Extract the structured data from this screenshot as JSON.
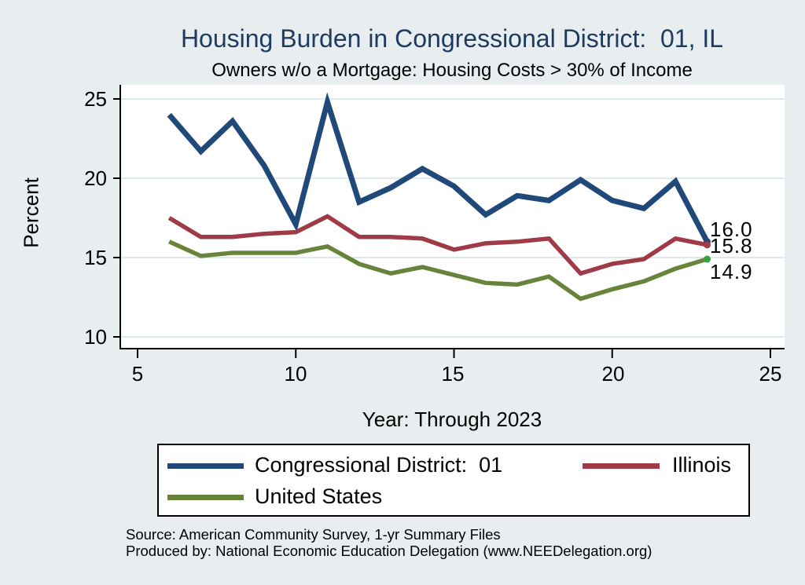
{
  "title": "Housing Burden in Congressional District:  01, IL",
  "subtitle": "Owners w/o a Mortgage: Housing Costs > 30% of Income",
  "y_axis": {
    "label": "Percent",
    "ticks": [
      "25",
      "20",
      "15",
      "10"
    ]
  },
  "x_axis": {
    "label": "Year: Through 2023",
    "ticks": [
      "5",
      "10",
      "15",
      "20",
      "25"
    ]
  },
  "end_labels": [
    "16.0",
    "15.8",
    "14.9"
  ],
  "source_line1": "Source: American Community Survey, 1-yr Summary Files",
  "source_line2": "Produced by: National Economic Education Delegation (www.NEEDelegation.org)",
  "colors": {
    "background": "#e8eef0",
    "plot_background": "#ffffff",
    "gridline": "#dfeaed",
    "axis": "#000000",
    "title": "#1e3a5f"
  },
  "chart_data": {
    "type": "line",
    "title": "Housing Burden in Congressional District:  01, IL",
    "subtitle": "Owners w/o a Mortgage: Housing Costs > 30% of Income",
    "xlabel": "Year: Through 2023",
    "ylabel": "Percent",
    "xlim": [
      5,
      25
    ],
    "ylim": [
      9.2,
      25.9
    ],
    "x_ticks": [
      5,
      10,
      15,
      20,
      25
    ],
    "y_ticks": [
      10,
      15,
      20,
      25
    ],
    "grid": true,
    "legend_position": "bottom",
    "x": [
      6,
      7,
      8,
      9,
      10,
      11,
      12,
      13,
      14,
      15,
      16,
      17,
      18,
      19,
      20,
      21,
      22,
      23
    ],
    "x_note": "x value = year - 2000, data through 2023",
    "series": [
      {
        "name": "Congressional District:  01",
        "color": "#20497a",
        "dot_color": "#20497a",
        "line_width": 7,
        "values": [
          24.0,
          21.7,
          23.6,
          20.8,
          17.1,
          24.8,
          18.5,
          19.4,
          20.6,
          19.5,
          17.7,
          18.9,
          18.6,
          19.9,
          18.6,
          18.1,
          19.8,
          16.0
        ],
        "end_label": "16.0"
      },
      {
        "name": "Illinois",
        "color": "#9e3b46",
        "dot_color": "#9e3b46",
        "line_width": 5.5,
        "values": [
          17.5,
          16.3,
          16.3,
          16.5,
          16.6,
          17.6,
          16.3,
          16.3,
          16.2,
          15.5,
          15.9,
          16.0,
          16.2,
          14.0,
          14.6,
          14.9,
          16.2,
          15.8
        ],
        "end_label": "15.8"
      },
      {
        "name": "United States",
        "color": "#68833a",
        "dot_color": "#35a33e",
        "line_width": 5.5,
        "values": [
          16.0,
          15.1,
          15.3,
          15.3,
          15.3,
          15.7,
          14.6,
          14.0,
          14.4,
          13.9,
          13.4,
          13.3,
          13.8,
          12.4,
          13.0,
          13.5,
          14.3,
          14.9
        ],
        "end_label": "14.9"
      }
    ]
  }
}
